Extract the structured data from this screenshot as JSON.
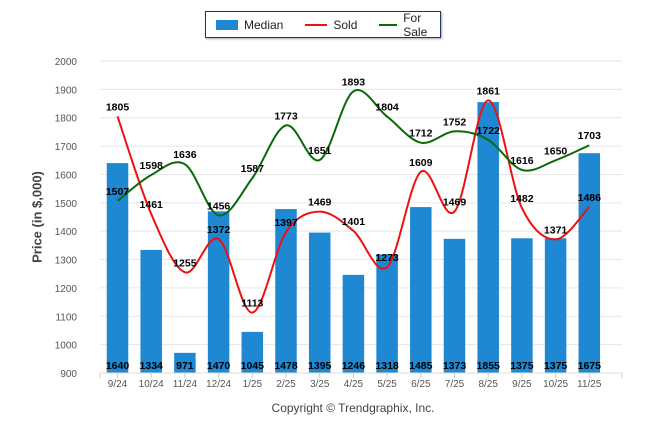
{
  "chart_data": {
    "type": "bar",
    "title": "",
    "xlabel": "",
    "ylabel": "Price (in $,000)",
    "ylim": [
      900,
      2000
    ],
    "yticks": [
      900,
      1000,
      1100,
      1200,
      1300,
      1400,
      1500,
      1600,
      1700,
      1800,
      1900,
      2000
    ],
    "grid": true,
    "legend_position": "top-center",
    "categories": [
      "9/24",
      "10/24",
      "11/24",
      "12/24",
      "1/25",
      "2/25",
      "3/25",
      "4/25",
      "5/25",
      "6/25",
      "7/25",
      "8/25",
      "9/25",
      "10/25",
      "11/25"
    ],
    "series": [
      {
        "name": "Median",
        "type": "bar",
        "color": "#1f88d2",
        "values": [
          1640,
          1334,
          971,
          1470,
          1045,
          1478,
          1395,
          1246,
          1318,
          1485,
          1373,
          1855,
          1375,
          1375,
          1675
        ]
      },
      {
        "name": "Sold",
        "type": "line",
        "color": "#ee1111",
        "values": [
          1805,
          1461,
          1255,
          1372,
          1113,
          1397,
          1469,
          1401,
          1273,
          1609,
          1469,
          1861,
          1482,
          1371,
          1486
        ]
      },
      {
        "name": "For Sale",
        "type": "line",
        "color": "#0a6a0a",
        "values": [
          1507,
          1598,
          1636,
          1456,
          1587,
          1773,
          1651,
          1893,
          1804,
          1712,
          1752,
          1722,
          1616,
          1650,
          1703
        ]
      }
    ]
  },
  "legend": {
    "items": [
      {
        "label": "Median",
        "kind": "bar",
        "color": "#1f88d2"
      },
      {
        "label": "Sold",
        "kind": "line",
        "color": "#ee1111"
      },
      {
        "label": "For Sale",
        "kind": "line",
        "color": "#0a6a0a"
      }
    ]
  },
  "footer": {
    "copyright": "Copyright © Trendgraphix, Inc."
  }
}
